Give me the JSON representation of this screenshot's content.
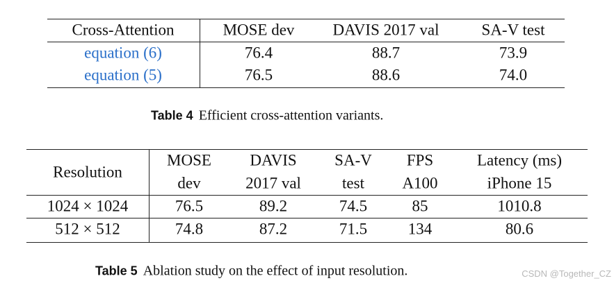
{
  "table4": {
    "header": [
      "Cross-Attention",
      "MOSE dev",
      "DAVIS 2017 val",
      "SA-V test"
    ],
    "rows": [
      [
        "equation (6)",
        "76.4",
        "88.7",
        "73.9"
      ],
      [
        "equation (5)",
        "76.5",
        "88.6",
        "74.0"
      ]
    ],
    "caption_label": "Table 4",
    "caption": "Efficient cross-attention variants."
  },
  "table5": {
    "header": [
      [
        "Resolution"
      ],
      [
        "MOSE",
        "dev"
      ],
      [
        "DAVIS",
        "2017 val"
      ],
      [
        "SA-V",
        "test"
      ],
      [
        "FPS",
        "A100"
      ],
      [
        "Latency (ms)",
        "iPhone 15"
      ]
    ],
    "rows": [
      [
        "1024 × 1024",
        "76.5",
        "89.2",
        "74.5",
        "85",
        "1010.8"
      ],
      [
        "512 × 512",
        "74.8",
        "87.2",
        "71.5",
        "134",
        "80.6"
      ]
    ],
    "caption_label": "Table 5",
    "caption": "Ablation study on the effect of input resolution."
  },
  "watermark": "CSDN @Together_CZ"
}
